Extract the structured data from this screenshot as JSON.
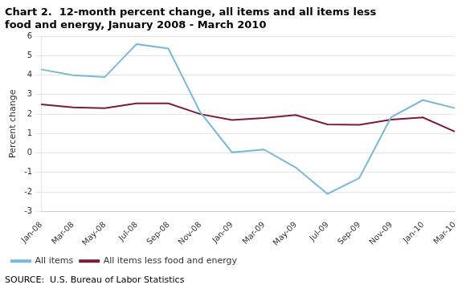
{
  "chart_data": {
    "type": "line",
    "title": [
      "Chart 2.  12-month percent change, all items and all items less",
      "food and energy, January 2008 - March 2010"
    ],
    "y_label": "Percent change",
    "annotations": [
      "SOURCE:  U.S. Bureau of Labor Statistics"
    ],
    "categories": [
      "Jan-08",
      "Mar-08",
      "May-08",
      "Jul-08",
      "Sep-08",
      "Nov-08",
      "Jan-09",
      "Mar-09",
      "May-09",
      "Jul-09",
      "Sep-09",
      "Nov-09",
      "Jan-10",
      "Mar-10"
    ],
    "series": [
      {
        "name": "All items",
        "color": "#7ab8d9",
        "values": [
          4.3,
          4.0,
          3.9,
          5.6,
          5.37,
          2.1,
          0.03,
          0.18,
          -0.74,
          -2.1,
          -1.29,
          1.84,
          2.72,
          2.31
        ]
      },
      {
        "name": "All items less food and energy",
        "color": "#7b1a3a",
        "values": [
          2.5,
          2.35,
          2.3,
          2.55,
          2.55,
          2.0,
          1.7,
          1.8,
          1.95,
          1.47,
          1.45,
          1.72,
          1.83,
          1.1
        ]
      }
    ],
    "ylim": [
      -3,
      6
    ],
    "yticks": [
      -3,
      -2,
      -1,
      0,
      1,
      2,
      3,
      4,
      5,
      6
    ],
    "grid": true,
    "legend": "lower left"
  }
}
